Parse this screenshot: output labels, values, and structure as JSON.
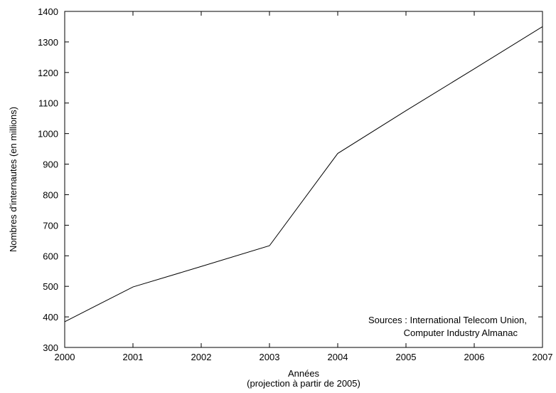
{
  "chart_data": {
    "type": "line",
    "x": [
      2000,
      2001,
      2002,
      2003,
      2004,
      2005,
      2006,
      2007
    ],
    "series": [
      {
        "values": [
          384,
          498,
          565,
          633,
          935,
          1075,
          1212,
          1350
        ]
      }
    ],
    "xlabel": "Années",
    "xlabel_sub": "(projection à partir de 2005)",
    "ylabel": "Nombres d'internautes (en millions)",
    "xlim": [
      2000,
      2007
    ],
    "ylim": [
      300,
      1400
    ],
    "x_ticks": [
      "2000",
      "2001",
      "2002",
      "2003",
      "2004",
      "2005",
      "2006",
      "2007"
    ],
    "y_ticks": [
      "300",
      "400",
      "500",
      "600",
      "700",
      "800",
      "900",
      "1000",
      "1100",
      "1200",
      "1300",
      "1400"
    ],
    "grid": false,
    "annotation": {
      "line1": "Sources : International Telecom Union,",
      "line2": "Computer Industry Almanac"
    },
    "line_color": "#000000"
  }
}
